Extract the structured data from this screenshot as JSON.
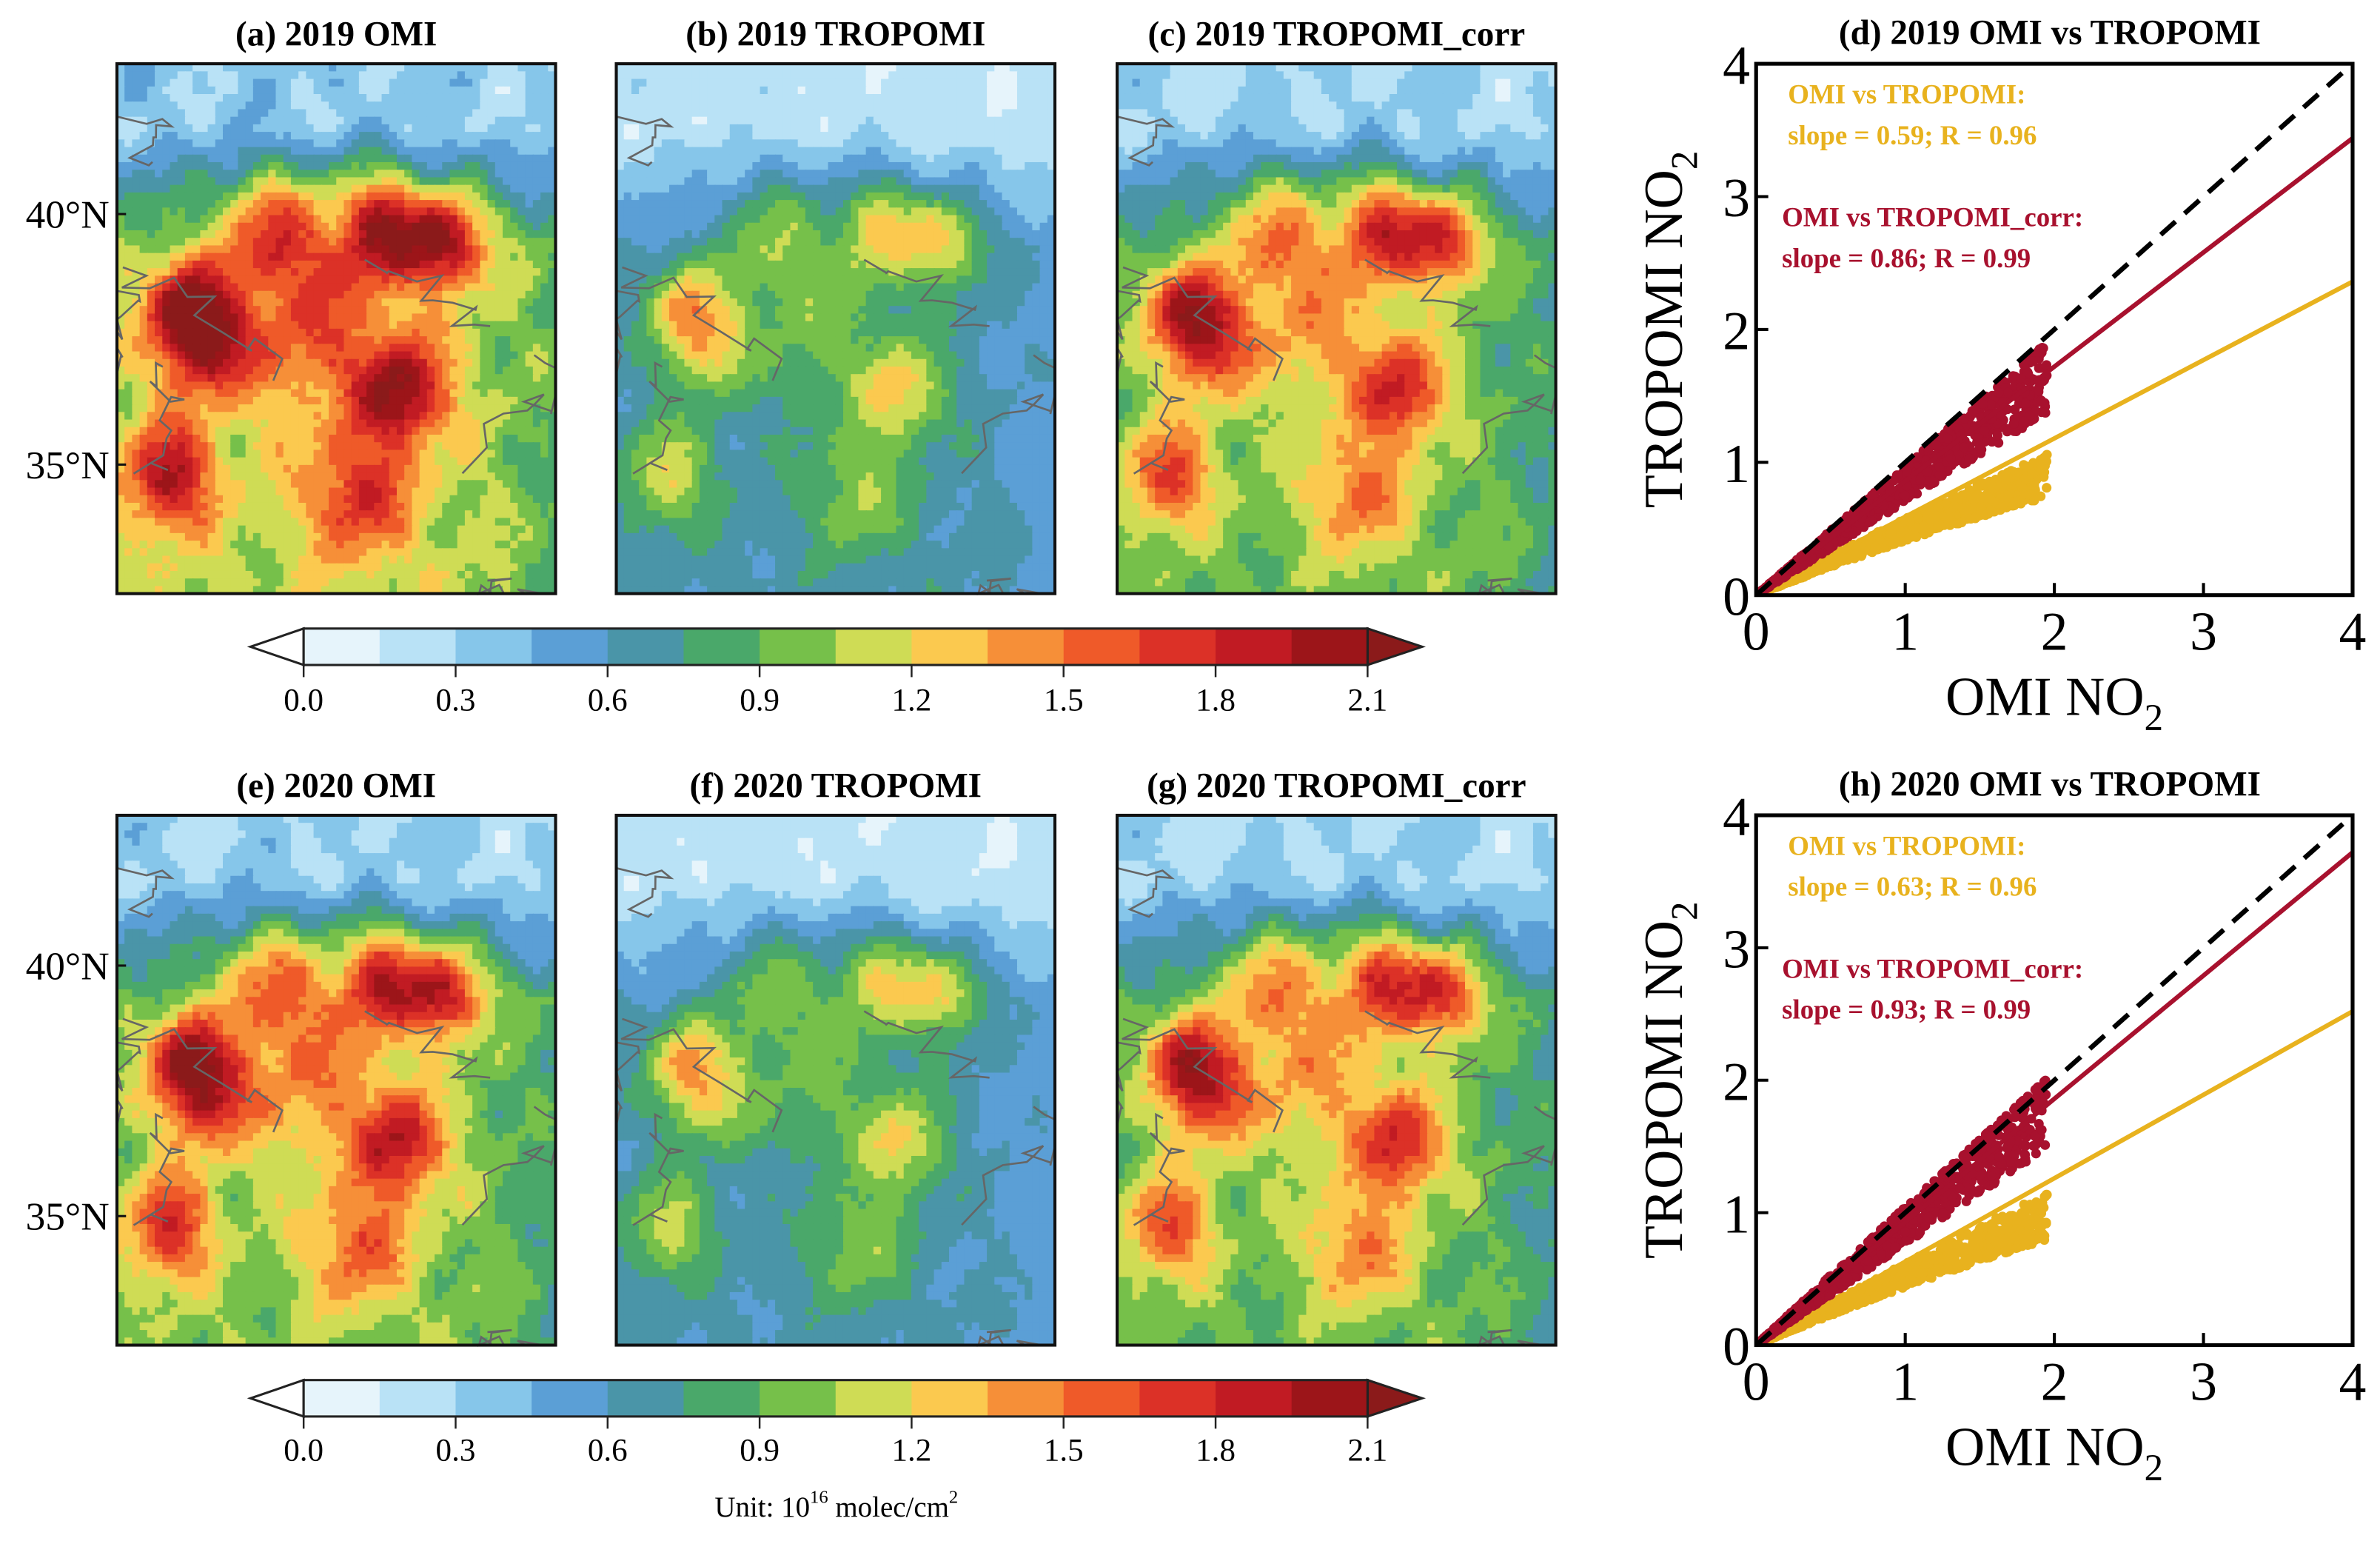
{
  "chart_data": {
    "type": "map_grid_with_scatter",
    "maps": [
      {
        "id": "a",
        "title": "(a) 2019 OMI",
        "scale": 1.0
      },
      {
        "id": "b",
        "title": "(b) 2019 TROPOMI",
        "scale": 0.59
      },
      {
        "id": "c",
        "title": "(c) 2019 TROPOMI_corr",
        "scale": 0.86
      },
      {
        "id": "e",
        "title": "(e) 2020 OMI",
        "scale": 0.9
      },
      {
        "id": "f",
        "title": "(f) 2020 TROPOMI",
        "scale": 0.57
      },
      {
        "id": "g",
        "title": "(g) 2020 TROPOMI_corr",
        "scale": 0.84
      }
    ],
    "lat_labels": [
      "40°N",
      "35°N"
    ],
    "colorbar": {
      "ticks": [
        "0.0",
        "0.3",
        "0.6",
        "0.9",
        "1.2",
        "1.5",
        "1.8",
        "2.1"
      ],
      "min": 0.0,
      "max": 2.1,
      "step": 0.15,
      "extend": "both",
      "colors": [
        "#e6f4fb",
        "#b9e2f6",
        "#86c6ea",
        "#5b9fd6",
        "#4a95a8",
        "#4aa86a",
        "#76c04a",
        "#cfdc55",
        "#fbc94f",
        "#f68f38",
        "#ef5a29",
        "#dc3127",
        "#c11b23",
        "#9c1519"
      ],
      "under_color": "#ffffff",
      "over_color": "#8b1a1a",
      "unit_prefix": "Unit: 10",
      "unit_exp": "16",
      "unit_suffix": " molec/cm",
      "unit_exp2": "2"
    },
    "scatter": [
      {
        "title": "(d) 2019 OMI vs TROPOMI",
        "xlabel": "OMI NO",
        "ylabel": "TROPOMI NO",
        "sub": "2",
        "xlim": [
          0,
          4
        ],
        "ylim": [
          0,
          4
        ],
        "ticks": [
          "0",
          "1",
          "2",
          "3",
          "4"
        ],
        "series": [
          {
            "name": "OMI vs TROPOMI:",
            "stat": "slope = 0.59; R = 0.96",
            "slope": 0.59,
            "color": "#e8b21e"
          },
          {
            "name": "OMI vs TROPOMI_corr:",
            "stat": "slope = 0.86; R = 0.99",
            "slope": 0.86,
            "color": "#a8112e"
          }
        ]
      },
      {
        "title": "(h) 2020 OMI vs TROPOMI",
        "xlabel": "OMI NO",
        "ylabel": "TROPOMI NO",
        "sub": "2",
        "xlim": [
          0,
          4
        ],
        "ylim": [
          0,
          4
        ],
        "ticks": [
          "0",
          "1",
          "2",
          "3",
          "4"
        ],
        "series": [
          {
            "name": "OMI vs TROPOMI:",
            "stat": "slope = 0.63; R = 0.96",
            "slope": 0.63,
            "color": "#e8b21e"
          },
          {
            "name": "OMI vs TROPOMI_corr:",
            "stat": "slope = 0.93; R = 0.99",
            "slope": 0.93,
            "color": "#a8112e"
          }
        ]
      }
    ]
  }
}
